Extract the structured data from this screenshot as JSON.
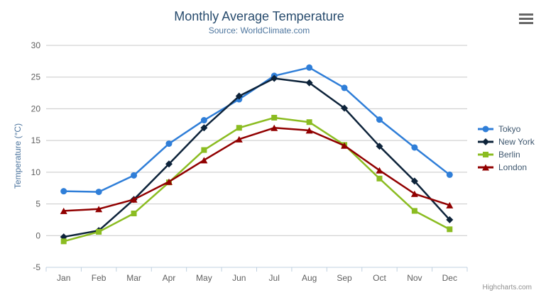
{
  "chart": {
    "title": "Monthly Average Temperature",
    "subtitle": "Source: WorldClimate.com",
    "y_axis_title": "Temperature (°C)",
    "credits": "Highcharts.com",
    "context_menu_icon": "hamburger-icon"
  },
  "chart_data": {
    "type": "line",
    "title": "Monthly Average Temperature",
    "subtitle": "Source: WorldClimate.com",
    "xlabel": "",
    "ylabel": "Temperature (°C)",
    "categories": [
      "Jan",
      "Feb",
      "Mar",
      "Apr",
      "May",
      "Jun",
      "Jul",
      "Aug",
      "Sep",
      "Oct",
      "Nov",
      "Dec"
    ],
    "series": [
      {
        "name": "Tokyo",
        "color": "#2f7ed8",
        "marker": "circle",
        "values": [
          7.0,
          6.9,
          9.5,
          14.5,
          18.2,
          21.5,
          25.2,
          26.5,
          23.3,
          18.3,
          13.9,
          9.6
        ]
      },
      {
        "name": "New York",
        "color": "#0d233a",
        "marker": "diamond",
        "values": [
          -0.2,
          0.8,
          5.7,
          11.3,
          17.0,
          22.0,
          24.8,
          24.1,
          20.1,
          14.1,
          8.6,
          2.5
        ]
      },
      {
        "name": "Berlin",
        "color": "#8bbc21",
        "marker": "square",
        "values": [
          -0.9,
          0.6,
          3.5,
          8.4,
          13.5,
          17.0,
          18.6,
          17.9,
          14.3,
          9.0,
          3.9,
          1.0
        ]
      },
      {
        "name": "London",
        "color": "#910000",
        "marker": "triangle",
        "values": [
          3.9,
          4.2,
          5.7,
          8.5,
          11.9,
          15.2,
          17.0,
          16.6,
          14.2,
          10.3,
          6.6,
          4.8
        ]
      }
    ],
    "ylim": [
      -5,
      30
    ],
    "ytick_step": 5,
    "grid": true,
    "legend_position": "right",
    "colors": {
      "title": "#274b6d",
      "subtitle": "#4d759e",
      "axis_label": "#606060",
      "axis_line": "#c0d0e0",
      "grid_line": "#c8c8c8",
      "legend_text": "#3e576f",
      "credits": "#909090"
    }
  }
}
